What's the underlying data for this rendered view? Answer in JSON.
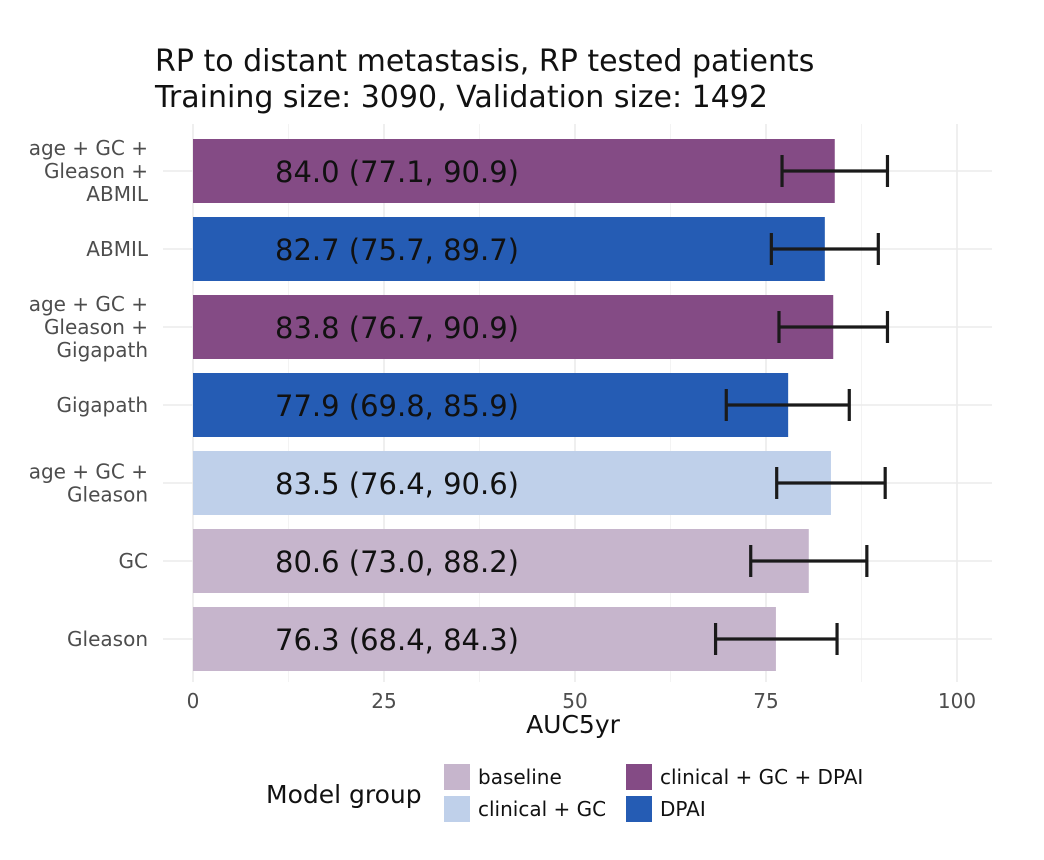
{
  "chart_data": {
    "type": "bar",
    "orientation": "horizontal",
    "title": [
      "RP to distant metastasis, RP tested patients",
      "Training size: 3090, Validation size: 1492"
    ],
    "xlabel": "AUC5yr",
    "ylabel": "",
    "xlim": [
      0,
      100
    ],
    "xticks": [
      0,
      25,
      50,
      75,
      100
    ],
    "grid": true,
    "categories": [
      {
        "label": [
          "age + GC +",
          "Gleason +",
          "ABMIL"
        ],
        "value": 84.0,
        "ci": [
          77.1,
          90.9
        ],
        "text": "84.0 (77.1, 90.9)",
        "group": "clinical + GC + DPAI"
      },
      {
        "label": [
          "ABMIL"
        ],
        "value": 82.7,
        "ci": [
          75.7,
          89.7
        ],
        "text": "82.7 (75.7, 89.7)",
        "group": "DPAI"
      },
      {
        "label": [
          "age + GC +",
          "Gleason +",
          "Gigapath"
        ],
        "value": 83.8,
        "ci": [
          76.7,
          90.9
        ],
        "text": "83.8 (76.7, 90.9)",
        "group": "clinical + GC + DPAI"
      },
      {
        "label": [
          "Gigapath"
        ],
        "value": 77.9,
        "ci": [
          69.8,
          85.9
        ],
        "text": "77.9 (69.8, 85.9)",
        "group": "DPAI"
      },
      {
        "label": [
          "age + GC +",
          "Gleason"
        ],
        "value": 83.5,
        "ci": [
          76.4,
          90.6
        ],
        "text": "83.5 (76.4, 90.6)",
        "group": "clinical + GC"
      },
      {
        "label": [
          "GC"
        ],
        "value": 80.6,
        "ci": [
          73.0,
          88.2
        ],
        "text": "80.6 (73.0, 88.2)",
        "group": "baseline"
      },
      {
        "label": [
          "Gleason"
        ],
        "value": 76.3,
        "ci": [
          68.4,
          84.3
        ],
        "text": "76.3 (68.4, 84.3)",
        "group": "baseline"
      }
    ],
    "legend": {
      "title": "Model group",
      "placement": "bottom",
      "items": [
        {
          "name": "baseline",
          "color": "#c6b5cc"
        },
        {
          "name": "clinical + GC",
          "color": "#bfd0ea"
        },
        {
          "name": "clinical + GC + DPAI",
          "color": "#844b85"
        },
        {
          "name": "DPAI",
          "color": "#255cb4"
        }
      ]
    }
  }
}
